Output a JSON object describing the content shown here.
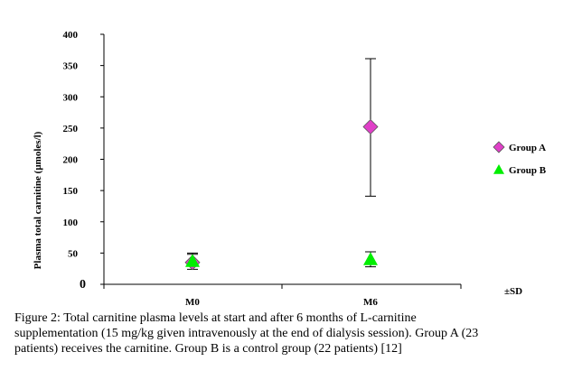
{
  "chart_data": {
    "type": "scatter",
    "ylabel": "Plasma total carnitine (µmoles/l)",
    "categories": [
      "M0",
      "M6"
    ],
    "ylim": [
      0,
      400
    ],
    "yticks": [
      0,
      50,
      100,
      150,
      200,
      250,
      300,
      350,
      400
    ],
    "series": [
      {
        "name": "Group A",
        "marker": "diamond",
        "color": "#e040c8",
        "values": [
          35,
          252
        ],
        "sd_low": [
          24,
          141
        ],
        "sd_high": [
          48,
          361
        ]
      },
      {
        "name": "Group B",
        "marker": "triangle",
        "color": "#00ee00",
        "values": [
          37,
          40
        ],
        "sd_low": [
          29,
          28
        ],
        "sd_high": [
          50,
          52
        ]
      }
    ],
    "legend_position": "right",
    "sd_label": "±SD"
  },
  "caption": {
    "lines": [
      "Figure 2: Total carnitine plasma levels at start and after 6 months of L-carnitine",
      "supplementation (15 mg/kg given intravenously at the end of dialysis session).  Group A (23",
      "patients) receives the carnitine.  Group B is a control group (22 patients) [12]"
    ]
  }
}
